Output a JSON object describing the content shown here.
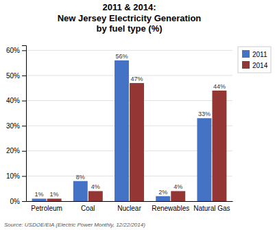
{
  "chart_data": {
    "type": "bar",
    "title": "2011 & 2014:\nNew Jersey Electricity Generation\nby fuel type (%)",
    "categories": [
      "Petroleum",
      "Coal",
      "Nuclear",
      "Renewables",
      "Natural Gas"
    ],
    "series": [
      {
        "name": "2011",
        "color": "#4472C4",
        "values": [
          1,
          8,
          56,
          2,
          33
        ],
        "value_labels": [
          "1%",
          "8%",
          "56%",
          "2%",
          "33%"
        ]
      },
      {
        "name": "2014",
        "color": "#943634",
        "values": [
          1,
          4,
          47,
          4,
          44
        ],
        "value_labels": [
          "1%",
          "4%",
          "47%",
          "4%",
          "44%"
        ]
      }
    ],
    "ylim": [
      0,
      62
    ],
    "yticks": [
      {
        "value": 0,
        "label": "0%"
      },
      {
        "value": 10,
        "label": "10%"
      },
      {
        "value": 20,
        "label": "20%"
      },
      {
        "value": 30,
        "label": "30%"
      },
      {
        "value": 40,
        "label": "40%"
      },
      {
        "value": 50,
        "label": "50%"
      },
      {
        "value": 60,
        "label": "60%"
      }
    ],
    "grid": true,
    "legend": "right",
    "data_labels": true,
    "annotations": [
      "Source: USDOE/EIA (Electric Power Monthly, 12/22/2014)"
    ]
  }
}
